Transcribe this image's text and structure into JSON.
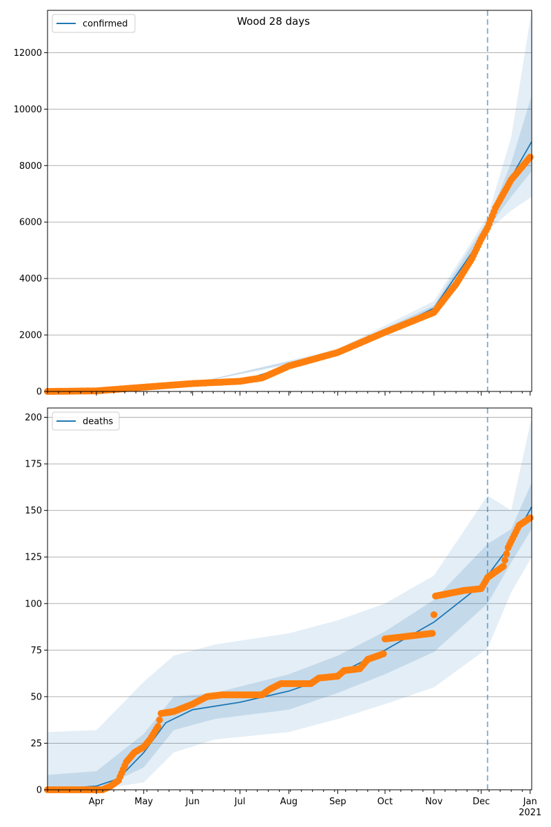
{
  "chart_data": [
    {
      "type": "line",
      "title": "Wood 28 days",
      "legend": {
        "label": "confirmed",
        "placement": "top-left"
      },
      "ylim": [
        0,
        13500
      ],
      "yticks": [
        0,
        2000,
        4000,
        6000,
        8000,
        10000,
        12000
      ],
      "ytick_labels": [
        "0",
        "2000",
        "4000",
        "6000",
        "8000",
        "10000",
        "12000"
      ],
      "grid": "horizontal",
      "forecast_start": "2020-12-05",
      "colors": {
        "line": "#1f77b4",
        "points": "#ff7f0e",
        "band": "#1f77b4",
        "divider": "#1f77b4"
      },
      "series": [
        {
          "name": "confirmed",
          "kind": "model-median",
          "x": [
            "2020-03-01",
            "2020-04-01",
            "2020-05-01",
            "2020-06-01",
            "2020-07-01",
            "2020-08-01",
            "2020-09-01",
            "2020-10-01",
            "2020-11-01",
            "2020-12-01",
            "2020-12-05",
            "2020-12-15",
            "2021-01-02"
          ],
          "y": [
            0,
            20,
            150,
            270,
            360,
            900,
            1400,
            2100,
            2950,
            5400,
            5800,
            7100,
            8850
          ]
        },
        {
          "name": "observed",
          "kind": "points",
          "x": [
            "2020-03-01",
            "2020-04-01",
            "2020-05-01",
            "2020-06-01",
            "2020-07-01",
            "2020-07-15",
            "2020-08-01",
            "2020-09-01",
            "2020-10-01",
            "2020-11-01",
            "2020-11-15",
            "2020-11-25",
            "2020-12-01",
            "2020-12-05",
            "2020-12-10",
            "2020-12-20",
            "2021-01-01"
          ],
          "y": [
            0,
            20,
            150,
            280,
            360,
            480,
            900,
            1380,
            2100,
            2800,
            3800,
            4700,
            5400,
            5800,
            6500,
            7500,
            8300
          ]
        }
      ],
      "bands": [
        {
          "level": "outer",
          "x": [
            "2020-03-01",
            "2020-06-01",
            "2020-09-01",
            "2020-11-01",
            "2020-12-05",
            "2020-12-20",
            "2021-01-02"
          ],
          "low": [
            0,
            270,
            1300,
            2700,
            5700,
            6400,
            6900
          ],
          "high": [
            0,
            290,
            1500,
            3200,
            6200,
            9000,
            13500
          ]
        },
        {
          "level": "inner",
          "x": [
            "2020-03-01",
            "2020-06-01",
            "2020-09-01",
            "2020-11-01",
            "2020-12-05",
            "2020-12-20",
            "2021-01-02"
          ],
          "low": [
            0,
            275,
            1350,
            2850,
            5750,
            6900,
            7800
          ],
          "high": [
            0,
            285,
            1450,
            3050,
            6050,
            8100,
            10500
          ]
        }
      ]
    },
    {
      "type": "line",
      "title": "",
      "legend": {
        "label": "deaths",
        "placement": "top-left"
      },
      "ylim": [
        0,
        205
      ],
      "yticks": [
        0,
        25,
        50,
        75,
        100,
        125,
        150,
        175,
        200
      ],
      "ytick_labels": [
        "0",
        "25",
        "50",
        "75",
        "100",
        "125",
        "150",
        "175",
        "200"
      ],
      "grid": "horizontal",
      "forecast_start": "2020-12-05",
      "series": [
        {
          "name": "deaths",
          "kind": "model-median",
          "x": [
            "2020-03-01",
            "2020-04-01",
            "2020-04-15",
            "2020-05-01",
            "2020-05-15",
            "2020-06-01",
            "2020-07-01",
            "2020-08-01",
            "2020-09-01",
            "2020-10-01",
            "2020-11-01",
            "2020-12-01",
            "2020-12-05",
            "2020-12-20",
            "2021-01-02"
          ],
          "y": [
            0,
            2,
            6,
            20,
            36,
            43,
            47,
            53,
            62,
            75,
            90,
            110,
            115,
            132,
            152
          ]
        },
        {
          "name": "observed",
          "kind": "points",
          "x": [
            "2020-03-01",
            "2020-04-05",
            "2020-04-10",
            "2020-04-15",
            "2020-04-20",
            "2020-04-25",
            "2020-05-01",
            "2020-05-05",
            "2020-05-10",
            "2020-05-12",
            "2020-05-20",
            "2020-06-01",
            "2020-06-10",
            "2020-06-20",
            "2020-07-15",
            "2020-07-20",
            "2020-07-27",
            "2020-08-15",
            "2020-08-20",
            "2020-09-01",
            "2020-09-05",
            "2020-09-15",
            "2020-09-20",
            "2020-09-30",
            "2020-10-01",
            "2020-10-31",
            "2020-11-02",
            "2020-11-20",
            "2020-12-01",
            "2020-12-05",
            "2020-12-10",
            "2020-12-15",
            "2020-12-18",
            "2020-12-25",
            "2021-01-01"
          ],
          "y": [
            0,
            0,
            2,
            5,
            15,
            20,
            23,
            27,
            34,
            41,
            42,
            46,
            50,
            51,
            51,
            54,
            57,
            57,
            60,
            61,
            64,
            65,
            70,
            73,
            81,
            84,
            104,
            107,
            108,
            114,
            117,
            120,
            130,
            142,
            146
          ]
        }
      ],
      "bands": [
        {
          "level": "outer",
          "x": [
            "2020-03-01",
            "2020-04-01",
            "2020-05-01",
            "2020-05-20",
            "2020-06-15",
            "2020-08-01",
            "2020-09-01",
            "2020-10-01",
            "2020-11-01",
            "2020-12-05",
            "2020-12-20",
            "2021-01-02"
          ],
          "low": [
            0,
            0,
            4,
            20,
            27,
            31,
            38,
            46,
            55,
            76,
            106,
            125
          ],
          "high": [
            31,
            32,
            58,
            72,
            78,
            84,
            91,
            100,
            115,
            158,
            150,
            200
          ]
        },
        {
          "level": "inner",
          "x": [
            "2020-03-01",
            "2020-04-01",
            "2020-05-01",
            "2020-05-20",
            "2020-06-15",
            "2020-08-01",
            "2020-09-01",
            "2020-10-01",
            "2020-11-01",
            "2020-12-05",
            "2020-12-20",
            "2021-01-02"
          ],
          "low": [
            0,
            0,
            12,
            32,
            38,
            43,
            52,
            62,
            74,
            100,
            122,
            140
          ],
          "high": [
            8,
            10,
            30,
            50,
            52,
            62,
            72,
            85,
            102,
            132,
            140,
            165
          ]
        }
      ]
    }
  ],
  "x_axis": {
    "range": [
      "2020-03-01",
      "2021-01-02"
    ],
    "ticks": [
      {
        "date": "2020-04-01",
        "label": "Apr"
      },
      {
        "date": "2020-05-01",
        "label": "May"
      },
      {
        "date": "2020-06-01",
        "label": "Jun"
      },
      {
        "date": "2020-07-01",
        "label": "Jul"
      },
      {
        "date": "2020-08-01",
        "label": "Aug"
      },
      {
        "date": "2020-09-01",
        "label": "Sep"
      },
      {
        "date": "2020-10-01",
        "label": "Oct"
      },
      {
        "date": "2020-11-01",
        "label": "Nov"
      },
      {
        "date": "2020-12-01",
        "label": "Dec"
      },
      {
        "date": "2021-01-01",
        "label": "Jan"
      }
    ],
    "year_label": "2021"
  }
}
